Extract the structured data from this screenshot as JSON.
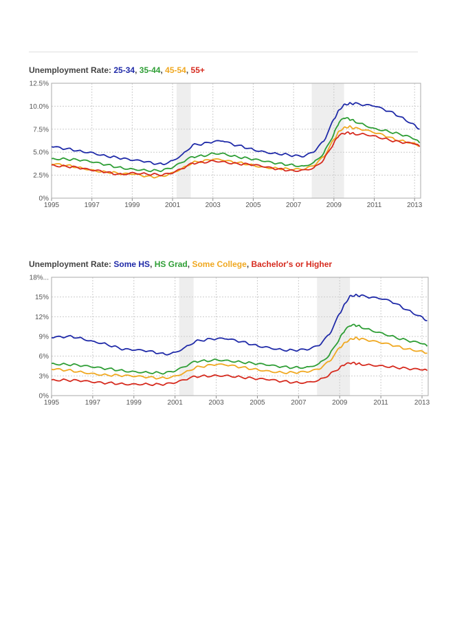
{
  "chart_data": [
    {
      "type": "line",
      "title_prefix": "Unemployment Rate:",
      "x_range": [
        1995,
        2013.3
      ],
      "xticks": [
        "1995",
        "1997",
        "1999",
        "2001",
        "2003",
        "2005",
        "2007",
        "2009",
        "2011",
        "2013"
      ],
      "ylim": [
        0,
        12.5
      ],
      "yticks": [
        "0%",
        "2.5%",
        "5.0%",
        "7.5%",
        "10.0%",
        "12.5%"
      ],
      "ytick_values": [
        0,
        2.5,
        5,
        7.5,
        10,
        12.5
      ],
      "grid": true,
      "recessions": [
        [
          2001.2,
          2001.9
        ],
        [
          2007.9,
          2009.5
        ]
      ],
      "series": [
        {
          "name": "25-34",
          "color": "#1f2aa8",
          "x": [
            1995,
            1995.5,
            1996,
            1996.5,
            1997,
            1997.5,
            1998,
            1998.5,
            1999,
            1999.5,
            2000,
            2000.5,
            2001,
            2001.5,
            2002,
            2002.5,
            2003,
            2003.5,
            2004,
            2004.5,
            2005,
            2005.5,
            2006,
            2006.5,
            2007,
            2007.5,
            2008,
            2008.5,
            2009,
            2009.25,
            2009.5,
            2009.75,
            2010,
            2010.5,
            2011,
            2011.5,
            2012,
            2012.5,
            2013,
            2013.25
          ],
          "y": [
            5.6,
            5.4,
            5.3,
            5.1,
            5.0,
            4.7,
            4.5,
            4.3,
            4.1,
            4.0,
            3.8,
            3.7,
            4.1,
            4.8,
            5.8,
            5.9,
            6.1,
            6.2,
            5.8,
            5.6,
            5.3,
            5.1,
            4.9,
            4.8,
            4.6,
            4.5,
            5.0,
            6.2,
            8.6,
            9.6,
            10.2,
            10.3,
            10.3,
            10.1,
            10.0,
            9.6,
            9.2,
            8.6,
            8.0,
            7.5
          ]
        },
        {
          "name": "35-44",
          "color": "#2e9e35",
          "x": [
            1995,
            1995.5,
            1996,
            1996.5,
            1997,
            1997.5,
            1998,
            1998.5,
            1999,
            1999.5,
            2000,
            2000.5,
            2001,
            2001.5,
            2002,
            2002.5,
            2003,
            2003.5,
            2004,
            2004.5,
            2005,
            2005.5,
            2006,
            2006.5,
            2007,
            2007.5,
            2008,
            2008.5,
            2009,
            2009.25,
            2009.5,
            2009.75,
            2010,
            2010.5,
            2011,
            2011.5,
            2012,
            2012.5,
            2013,
            2013.25
          ],
          "y": [
            4.3,
            4.3,
            4.2,
            4.1,
            3.9,
            3.7,
            3.5,
            3.3,
            3.2,
            3.1,
            3.0,
            3.0,
            3.3,
            3.9,
            4.5,
            4.6,
            4.9,
            4.9,
            4.6,
            4.4,
            4.2,
            4.0,
            3.8,
            3.7,
            3.6,
            3.5,
            3.9,
            4.9,
            7.0,
            8.2,
            8.7,
            8.6,
            8.4,
            8.0,
            7.6,
            7.4,
            7.1,
            6.8,
            6.4,
            6.0
          ]
        },
        {
          "name": "45-54",
          "color": "#f0a820",
          "x": [
            1995,
            1995.5,
            1996,
            1996.5,
            1997,
            1997.5,
            1998,
            1998.5,
            1999,
            1999.5,
            2000,
            2000.5,
            2001,
            2001.5,
            2002,
            2002.5,
            2003,
            2003.5,
            2004,
            2004.5,
            2005,
            2005.5,
            2006,
            2006.5,
            2007,
            2007.5,
            2008,
            2008.5,
            2009,
            2009.25,
            2009.5,
            2009.75,
            2010,
            2010.5,
            2011,
            2011.5,
            2012,
            2012.5,
            2013,
            2013.25
          ],
          "y": [
            3.7,
            3.6,
            3.5,
            3.3,
            3.1,
            2.9,
            2.8,
            2.6,
            2.6,
            2.4,
            2.3,
            2.4,
            2.8,
            3.3,
            3.9,
            4.0,
            4.2,
            4.1,
            3.9,
            3.8,
            3.6,
            3.4,
            3.3,
            3.2,
            3.1,
            3.1,
            3.5,
            4.5,
            6.4,
            7.3,
            7.7,
            7.8,
            7.6,
            7.4,
            7.1,
            6.8,
            6.4,
            6.2,
            6.0,
            5.7
          ]
        },
        {
          "name": "55+",
          "color": "#d62a1e",
          "x": [
            1995,
            1995.5,
            1996,
            1996.5,
            1997,
            1997.5,
            1998,
            1998.5,
            1999,
            1999.5,
            2000,
            2000.5,
            2001,
            2001.5,
            2002,
            2002.5,
            2003,
            2003.5,
            2004,
            2004.5,
            2005,
            2005.5,
            2006,
            2006.5,
            2007,
            2007.5,
            2008,
            2008.5,
            2009,
            2009.25,
            2009.5,
            2009.75,
            2010,
            2010.5,
            2011,
            2011.5,
            2012,
            2012.5,
            2013,
            2013.25
          ],
          "y": [
            3.6,
            3.5,
            3.4,
            3.2,
            3.0,
            2.9,
            2.7,
            2.6,
            2.8,
            2.7,
            2.6,
            2.5,
            2.7,
            3.2,
            3.8,
            3.9,
            4.1,
            4.0,
            3.8,
            3.7,
            3.6,
            3.4,
            3.2,
            3.1,
            3.0,
            3.1,
            3.3,
            4.2,
            6.0,
            6.8,
            7.0,
            7.1,
            7.0,
            7.0,
            6.8,
            6.5,
            6.2,
            6.0,
            5.9,
            5.6
          ]
        }
      ]
    },
    {
      "type": "line",
      "title_prefix": "Unemployment Rate:",
      "x_range": [
        1995,
        2013.3
      ],
      "xticks": [
        "1995",
        "1997",
        "1999",
        "2001",
        "2003",
        "2005",
        "2007",
        "2009",
        "2011",
        "2013"
      ],
      "ylim": [
        0,
        18
      ],
      "yticks": [
        "0%",
        "3%",
        "6%",
        "9%",
        "12%",
        "15%",
        "18%..."
      ],
      "ytick_values": [
        0,
        3,
        6,
        9,
        12,
        15,
        18
      ],
      "grid": true,
      "recessions": [
        [
          2001.2,
          2001.9
        ],
        [
          2007.9,
          2009.5
        ]
      ],
      "series": [
        {
          "name": "Some HS",
          "color": "#1f2aa8",
          "x": [
            1995,
            1995.5,
            1996,
            1996.5,
            1997,
            1997.5,
            1998,
            1998.5,
            1999,
            1999.5,
            2000,
            2000.5,
            2001,
            2001.5,
            2002,
            2002.5,
            2003,
            2003.5,
            2004,
            2004.5,
            2005,
            2005.5,
            2006,
            2006.5,
            2007,
            2007.5,
            2008,
            2008.5,
            2009,
            2009.25,
            2009.5,
            2009.75,
            2010,
            2010.5,
            2011,
            2011.5,
            2012,
            2012.5,
            2013,
            2013.25
          ],
          "y": [
            8.8,
            8.9,
            9.0,
            8.7,
            8.3,
            8.0,
            7.5,
            7.0,
            6.9,
            6.8,
            6.6,
            6.3,
            6.6,
            7.4,
            8.3,
            8.5,
            8.6,
            8.6,
            8.3,
            8.0,
            7.6,
            7.4,
            7.1,
            6.9,
            6.9,
            7.0,
            7.6,
            9.3,
            12.5,
            14.0,
            15.2,
            15.3,
            15.2,
            14.9,
            14.7,
            14.3,
            13.5,
            12.7,
            12.0,
            11.4
          ]
        },
        {
          "name": "HS Grad",
          "color": "#2e9e35",
          "x": [
            1995,
            1995.5,
            1996,
            1996.5,
            1997,
            1997.5,
            1998,
            1998.5,
            1999,
            1999.5,
            2000,
            2000.5,
            2001,
            2001.5,
            2002,
            2002.5,
            2003,
            2003.5,
            2004,
            2004.5,
            2005,
            2005.5,
            2006,
            2006.5,
            2007,
            2007.5,
            2008,
            2008.5,
            2009,
            2009.25,
            2009.5,
            2009.75,
            2010,
            2010.5,
            2011,
            2011.5,
            2012,
            2012.5,
            2013,
            2013.25
          ],
          "y": [
            4.9,
            4.8,
            4.7,
            4.5,
            4.3,
            4.1,
            4.0,
            3.8,
            3.7,
            3.6,
            3.5,
            3.4,
            3.7,
            4.4,
            5.2,
            5.3,
            5.5,
            5.4,
            5.2,
            5.0,
            4.8,
            4.6,
            4.4,
            4.3,
            4.3,
            4.4,
            4.9,
            6.2,
            8.7,
            9.9,
            10.6,
            10.7,
            10.5,
            10.0,
            9.6,
            9.1,
            8.6,
            8.2,
            7.9,
            7.5
          ]
        },
        {
          "name": "Some College",
          "color": "#f0a820",
          "x": [
            1995,
            1995.5,
            1996,
            1996.5,
            1997,
            1997.5,
            1998,
            1998.5,
            1999,
            1999.5,
            2000,
            2000.5,
            2001,
            2001.5,
            2002,
            2002.5,
            2003,
            2003.5,
            2004,
            2004.5,
            2005,
            2005.5,
            2006,
            2006.5,
            2007,
            2007.5,
            2008,
            2008.5,
            2009,
            2009.25,
            2009.5,
            2009.75,
            2010,
            2010.5,
            2011,
            2011.5,
            2012,
            2012.5,
            2013,
            2013.25
          ],
          "y": [
            4.0,
            3.9,
            3.8,
            3.6,
            3.4,
            3.2,
            3.1,
            3.0,
            2.9,
            2.8,
            2.7,
            2.7,
            3.0,
            3.6,
            4.3,
            4.5,
            4.7,
            4.6,
            4.4,
            4.2,
            4.0,
            3.8,
            3.6,
            3.5,
            3.5,
            3.6,
            4.0,
            5.2,
            7.3,
            8.1,
            8.6,
            8.8,
            8.6,
            8.3,
            8.0,
            7.7,
            7.3,
            7.0,
            6.8,
            6.5
          ]
        },
        {
          "name": "Bachelor's or Higher",
          "color": "#d62a1e",
          "x": [
            1995,
            1995.5,
            1996,
            1996.5,
            1997,
            1997.5,
            1998,
            1998.5,
            1999,
            1999.5,
            2000,
            2000.5,
            2001,
            2001.5,
            2002,
            2002.5,
            2003,
            2003.5,
            2004,
            2004.5,
            2005,
            2005.5,
            2006,
            2006.5,
            2007,
            2007.5,
            2008,
            2008.5,
            2009,
            2009.25,
            2009.5,
            2009.75,
            2010,
            2010.5,
            2011,
            2011.5,
            2012,
            2012.5,
            2013,
            2013.25
          ],
          "y": [
            2.4,
            2.4,
            2.3,
            2.2,
            2.0,
            1.9,
            1.9,
            1.8,
            1.8,
            1.8,
            1.7,
            1.7,
            1.9,
            2.4,
            2.9,
            3.0,
            3.1,
            3.1,
            2.9,
            2.7,
            2.5,
            2.4,
            2.2,
            2.1,
            2.0,
            2.1,
            2.4,
            3.2,
            4.2,
            4.7,
            4.9,
            4.9,
            4.8,
            4.7,
            4.6,
            4.4,
            4.2,
            4.0,
            3.9,
            3.8
          ]
        }
      ]
    }
  ]
}
